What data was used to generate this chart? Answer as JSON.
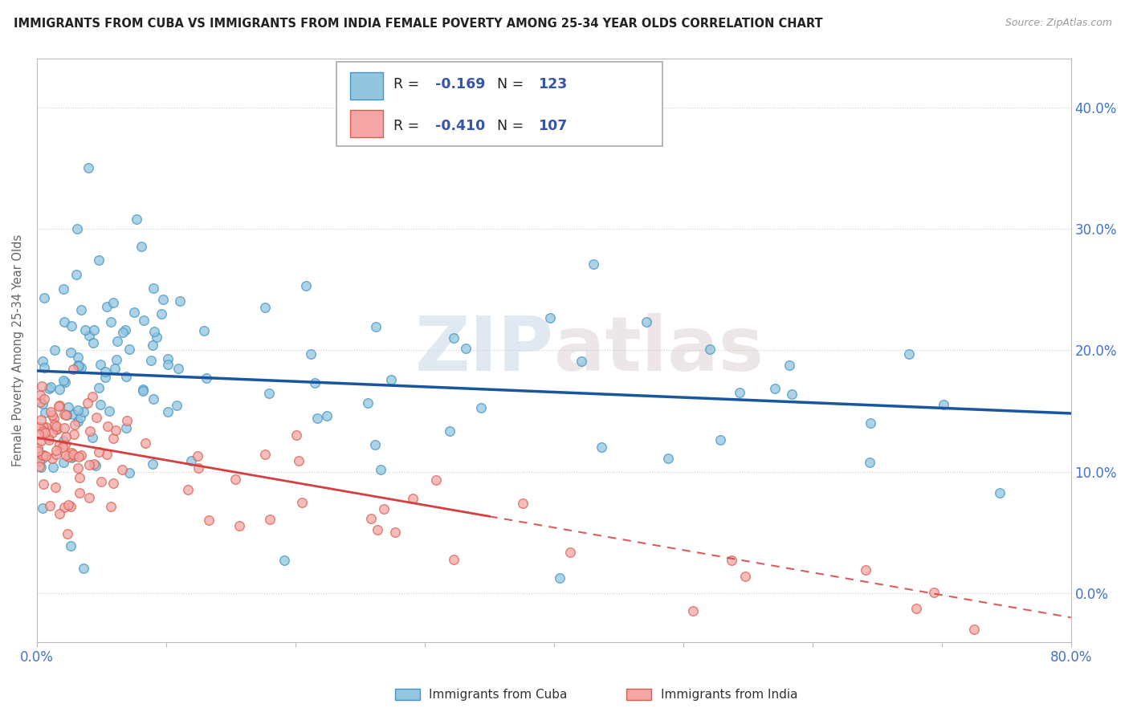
{
  "title": "IMMIGRANTS FROM CUBA VS IMMIGRANTS FROM INDIA FEMALE POVERTY AMONG 25-34 YEAR OLDS CORRELATION CHART",
  "source": "Source: ZipAtlas.com",
  "ylabel_label": "Female Poverty Among 25-34 Year Olds",
  "legend_cuba": "Immigrants from Cuba",
  "legend_india": "Immigrants from India",
  "R_cuba": -0.169,
  "N_cuba": 123,
  "R_india": -0.41,
  "N_india": 107,
  "cuba_color": "#92c5de",
  "cuba_edge_color": "#4393c3",
  "india_color": "#f4a6a6",
  "india_edge_color": "#d6604d",
  "cuba_line_color": "#1a56a0",
  "india_line_color": "#d63f3f",
  "watermark": "ZIPatlas",
  "background_color": "#ffffff",
  "xlim": [
    0.0,
    0.8
  ],
  "ylim": [
    -0.04,
    0.44
  ],
  "yticks": [
    0.0,
    0.1,
    0.2,
    0.3,
    0.4
  ],
  "xticks": [
    0.0,
    0.1,
    0.2,
    0.3,
    0.4,
    0.5,
    0.6,
    0.7,
    0.8
  ]
}
